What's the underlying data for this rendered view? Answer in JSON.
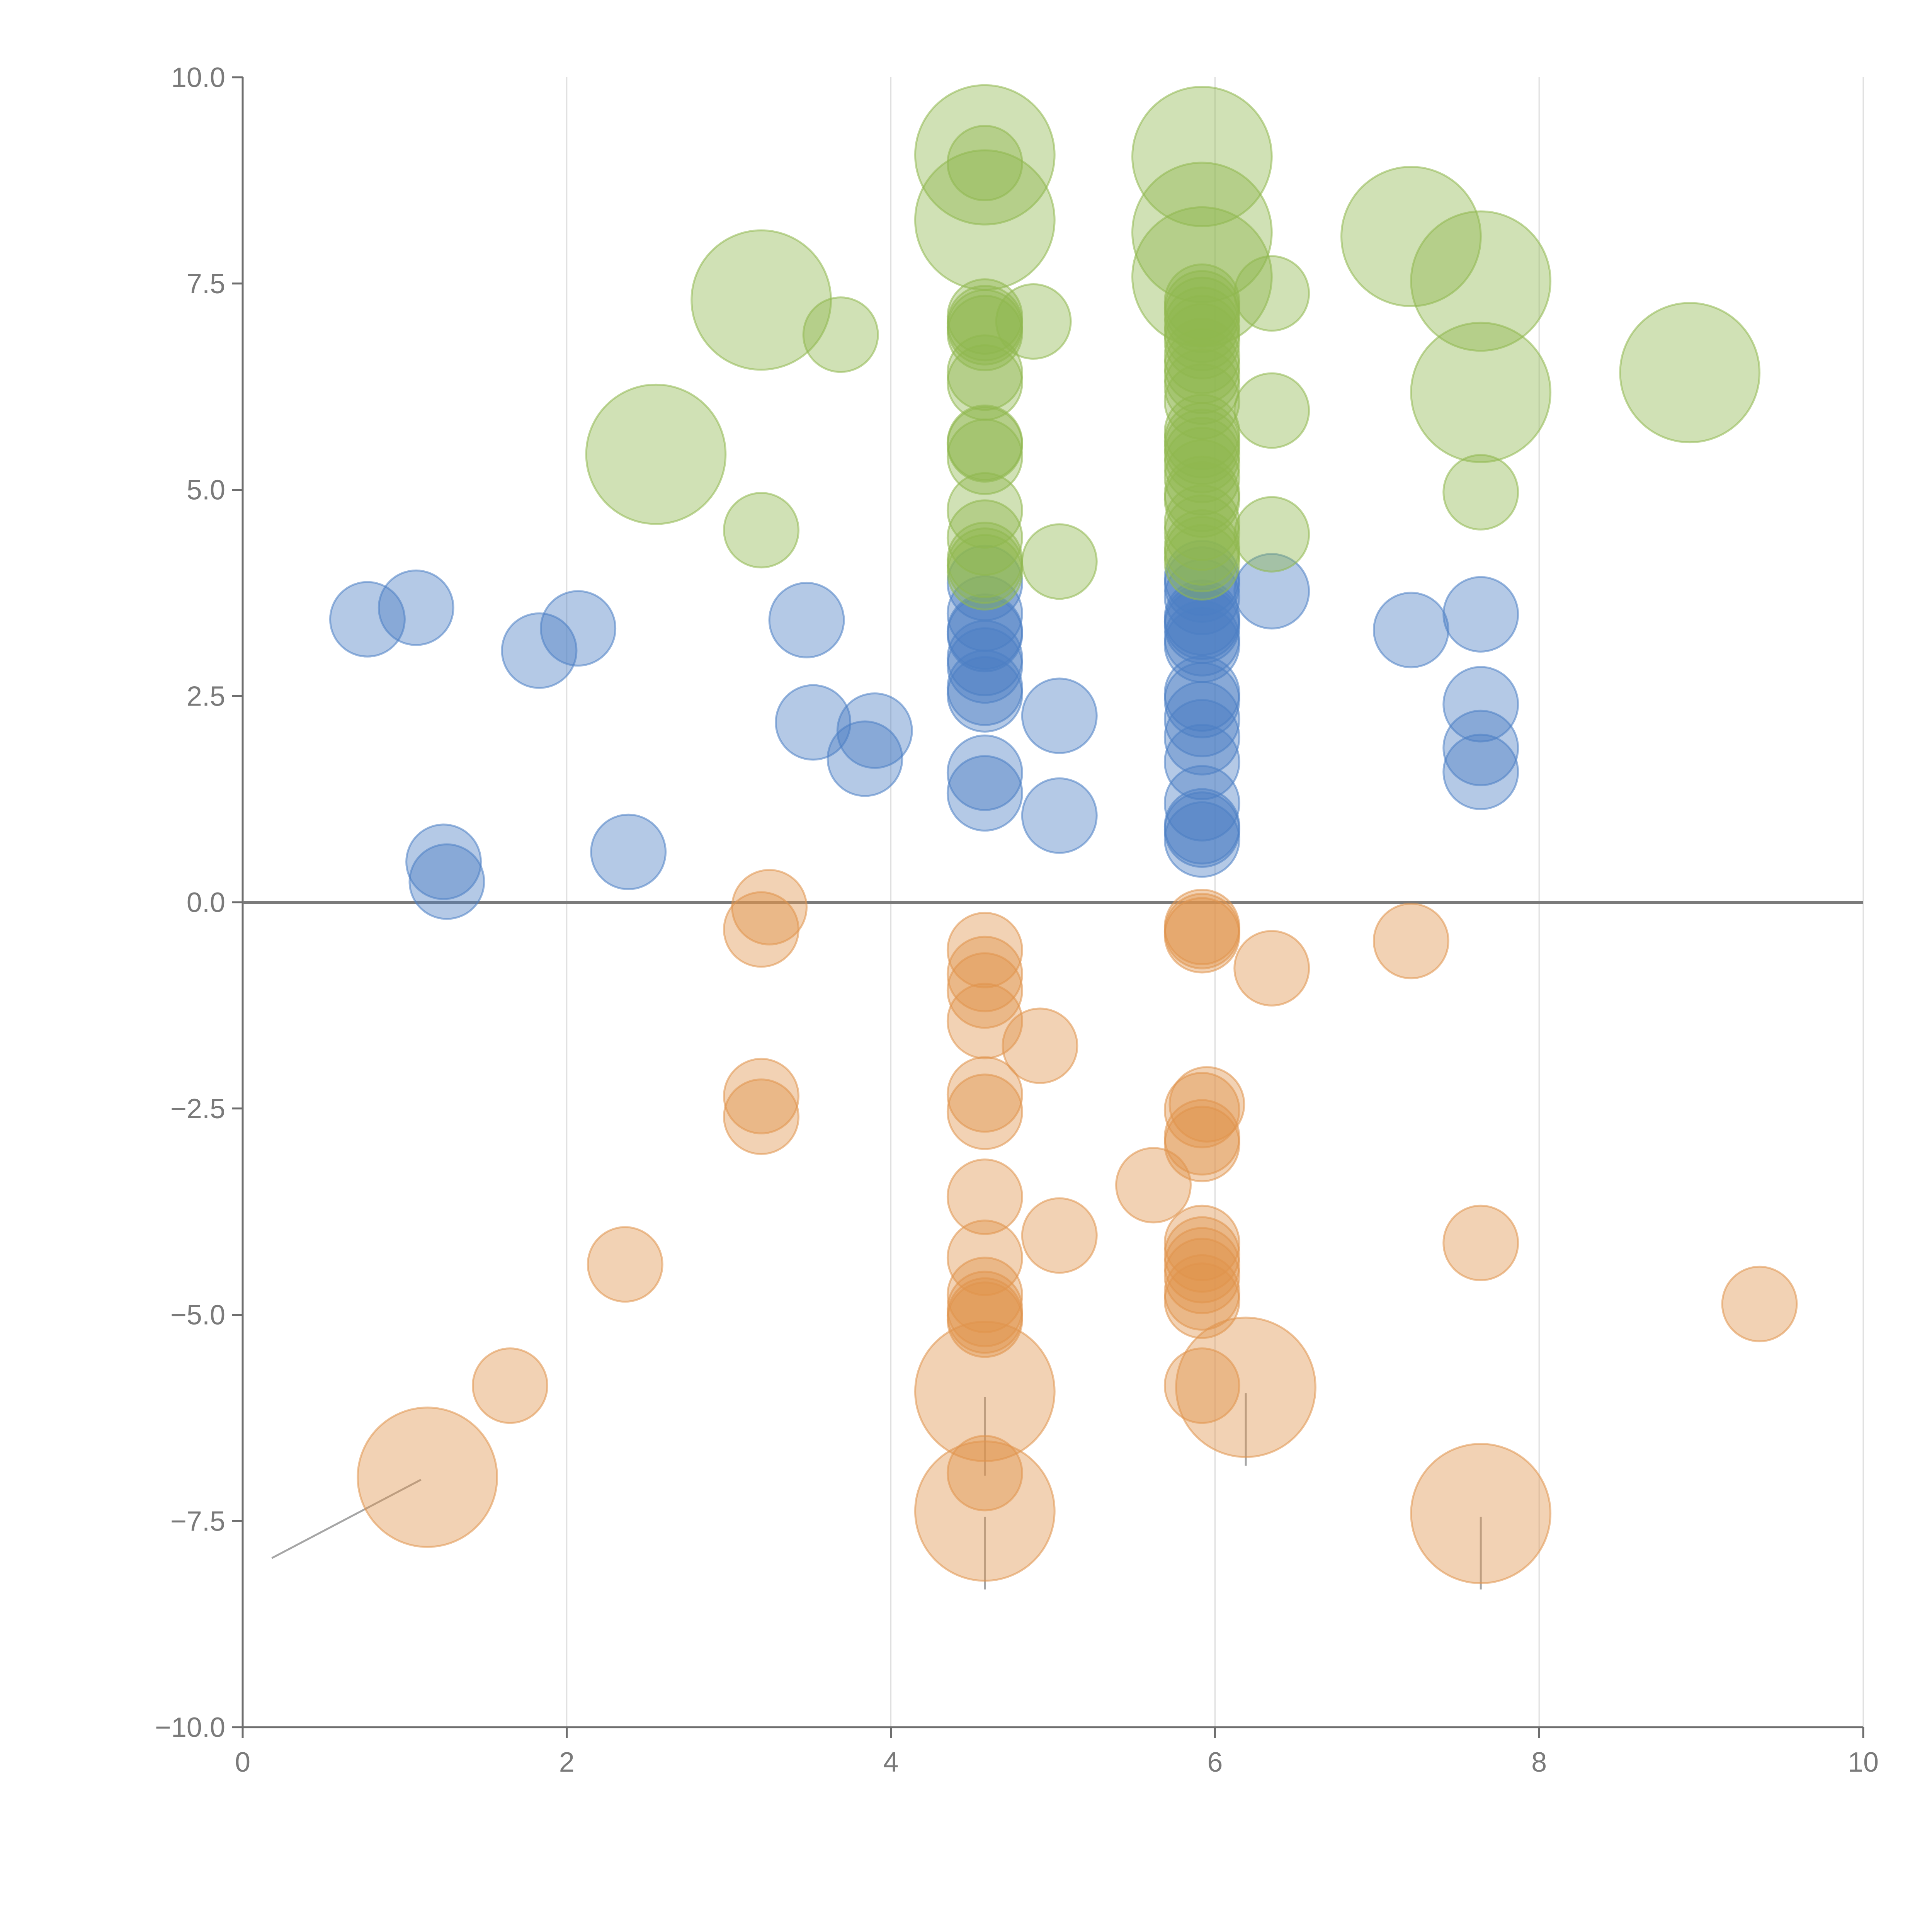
{
  "chart_data": {
    "type": "scatter",
    "title": "",
    "xlabel": "",
    "ylabel": "",
    "xlim": [
      0,
      10
    ],
    "ylim": [
      -10,
      10
    ],
    "x_ticks": [
      {
        "value": 0,
        "label": "0"
      },
      {
        "value": 2,
        "label": "2"
      },
      {
        "value": 4,
        "label": "4"
      },
      {
        "value": 6,
        "label": "6"
      },
      {
        "value": 8,
        "label": "8"
      },
      {
        "value": 10,
        "label": "10"
      }
    ],
    "y_ticks": [
      {
        "value": 10,
        "label": "10.0"
      },
      {
        "value": 7.5,
        "label": "7.5"
      },
      {
        "value": 5,
        "label": "5.0"
      },
      {
        "value": 2.5,
        "label": "2.5"
      },
      {
        "value": 0,
        "label": "0.0"
      },
      {
        "value": -2.5,
        "label": "−2.5"
      },
      {
        "value": -5,
        "label": "−5.0"
      },
      {
        "value": -7.5,
        "label": "−7.5"
      },
      {
        "value": -10,
        "label": "−10.0"
      }
    ],
    "grid": {
      "vertical": true,
      "horizontal": false
    },
    "series": [
      {
        "name": "blue",
        "color": "#4d7fc4",
        "points": [
          {
            "x": 0.77,
            "y": 3.43,
            "r": 1
          },
          {
            "x": 1.07,
            "y": 3.57,
            "r": 1
          },
          {
            "x": 1.24,
            "y": 0.49,
            "r": 1
          },
          {
            "x": 1.26,
            "y": 0.25,
            "r": 1
          },
          {
            "x": 1.83,
            "y": 3.05,
            "r": 1
          },
          {
            "x": 2.07,
            "y": 3.32,
            "r": 1
          },
          {
            "x": 2.38,
            "y": 0.61,
            "r": 1
          },
          {
            "x": 3.48,
            "y": 3.42,
            "r": 1
          },
          {
            "x": 3.52,
            "y": 2.18,
            "r": 1
          },
          {
            "x": 3.84,
            "y": 1.74,
            "r": 1
          },
          {
            "x": 3.9,
            "y": 2.08,
            "r": 1
          },
          {
            "x": 4.58,
            "y": 3.87,
            "r": 1
          },
          {
            "x": 4.58,
            "y": 3.5,
            "r": 1
          },
          {
            "x": 4.58,
            "y": 3.28,
            "r": 1
          },
          {
            "x": 4.58,
            "y": 3.25,
            "r": 1
          },
          {
            "x": 4.58,
            "y": 2.96,
            "r": 1
          },
          {
            "x": 4.58,
            "y": 2.87,
            "r": 1
          },
          {
            "x": 4.58,
            "y": 2.6,
            "r": 1
          },
          {
            "x": 4.58,
            "y": 2.52,
            "r": 1
          },
          {
            "x": 4.58,
            "y": 1.57,
            "r": 1
          },
          {
            "x": 4.58,
            "y": 1.32,
            "r": 1
          },
          {
            "x": 5.04,
            "y": 2.26,
            "r": 1
          },
          {
            "x": 5.04,
            "y": 1.05,
            "r": 1
          },
          {
            "x": 5.92,
            "y": 3.93,
            "r": 1
          },
          {
            "x": 5.92,
            "y": 3.85,
            "r": 1
          },
          {
            "x": 5.92,
            "y": 3.7,
            "r": 1
          },
          {
            "x": 5.92,
            "y": 3.45,
            "r": 1
          },
          {
            "x": 5.92,
            "y": 3.4,
            "r": 1
          },
          {
            "x": 5.92,
            "y": 3.35,
            "r": 1
          },
          {
            "x": 5.92,
            "y": 3.2,
            "r": 1
          },
          {
            "x": 5.92,
            "y": 3.12,
            "r": 1
          },
          {
            "x": 5.92,
            "y": 2.53,
            "r": 1
          },
          {
            "x": 5.92,
            "y": 2.45,
            "r": 1
          },
          {
            "x": 5.92,
            "y": 2.22,
            "r": 1
          },
          {
            "x": 5.92,
            "y": 2.0,
            "r": 1
          },
          {
            "x": 5.92,
            "y": 1.7,
            "r": 1
          },
          {
            "x": 5.92,
            "y": 1.2,
            "r": 1
          },
          {
            "x": 5.92,
            "y": 0.92,
            "r": 1
          },
          {
            "x": 5.92,
            "y": 0.88,
            "r": 1
          },
          {
            "x": 5.92,
            "y": 0.76,
            "r": 1
          },
          {
            "x": 6.35,
            "y": 3.77,
            "r": 1
          },
          {
            "x": 7.21,
            "y": 3.3,
            "r": 1
          },
          {
            "x": 7.64,
            "y": 3.49,
            "r": 1
          },
          {
            "x": 7.64,
            "y": 2.4,
            "r": 1
          },
          {
            "x": 7.64,
            "y": 1.87,
            "r": 1
          },
          {
            "x": 7.64,
            "y": 1.58,
            "r": 1
          }
        ]
      },
      {
        "name": "orange",
        "color": "#e0944d",
        "points": [
          {
            "x": 1.14,
            "y": -6.97,
            "r": 2
          },
          {
            "x": 1.65,
            "y": -5.86,
            "r": 1
          },
          {
            "x": 2.36,
            "y": -4.39,
            "r": 1
          },
          {
            "x": 3.2,
            "y": -0.33,
            "r": 1
          },
          {
            "x": 3.25,
            "y": -0.06,
            "r": 1
          },
          {
            "x": 3.2,
            "y": -2.35,
            "r": 1
          },
          {
            "x": 3.2,
            "y": -2.6,
            "r": 1
          },
          {
            "x": 4.58,
            "y": -0.58,
            "r": 1
          },
          {
            "x": 4.58,
            "y": -0.87,
            "r": 1
          },
          {
            "x": 4.58,
            "y": -1.07,
            "r": 1
          },
          {
            "x": 4.58,
            "y": -1.44,
            "r": 1
          },
          {
            "x": 4.58,
            "y": -2.33,
            "r": 1
          },
          {
            "x": 4.58,
            "y": -2.54,
            "r": 1
          },
          {
            "x": 4.58,
            "y": -3.57,
            "r": 1
          },
          {
            "x": 4.58,
            "y": -4.31,
            "r": 1
          },
          {
            "x": 4.58,
            "y": -4.76,
            "r": 1
          },
          {
            "x": 4.58,
            "y": -4.93,
            "r": 1
          },
          {
            "x": 4.58,
            "y": -5.01,
            "r": 1
          },
          {
            "x": 4.58,
            "y": -5.06,
            "r": 1
          },
          {
            "x": 4.58,
            "y": -5.93,
            "r": 2
          },
          {
            "x": 4.58,
            "y": -6.92,
            "r": 1
          },
          {
            "x": 4.58,
            "y": -7.38,
            "r": 2
          },
          {
            "x": 4.92,
            "y": -1.74,
            "r": 1
          },
          {
            "x": 5.04,
            "y": -4.04,
            "r": 1
          },
          {
            "x": 5.62,
            "y": -3.43,
            "r": 1
          },
          {
            "x": 5.92,
            "y": -0.3,
            "r": 1
          },
          {
            "x": 5.92,
            "y": -0.35,
            "r": 1
          },
          {
            "x": 5.92,
            "y": -0.4,
            "r": 1
          },
          {
            "x": 5.92,
            "y": -2.52,
            "r": 1
          },
          {
            "x": 5.95,
            "y": -2.45,
            "r": 1
          },
          {
            "x": 5.92,
            "y": -2.85,
            "r": 1
          },
          {
            "x": 5.92,
            "y": -2.93,
            "r": 1
          },
          {
            "x": 5.92,
            "y": -4.13,
            "r": 1
          },
          {
            "x": 5.92,
            "y": -4.27,
            "r": 1
          },
          {
            "x": 5.92,
            "y": -4.4,
            "r": 1
          },
          {
            "x": 5.92,
            "y": -4.53,
            "r": 1
          },
          {
            "x": 5.92,
            "y": -4.73,
            "r": 1
          },
          {
            "x": 5.92,
            "y": -4.83,
            "r": 1
          },
          {
            "x": 5.92,
            "y": -5.86,
            "r": 1
          },
          {
            "x": 6.19,
            "y": -5.88,
            "r": 2
          },
          {
            "x": 6.35,
            "y": -0.8,
            "r": 1
          },
          {
            "x": 7.21,
            "y": -0.47,
            "r": 1
          },
          {
            "x": 7.64,
            "y": -4.13,
            "r": 1
          },
          {
            "x": 7.64,
            "y": -7.41,
            "r": 2
          },
          {
            "x": 9.36,
            "y": -4.87,
            "r": 1
          }
        ]
      },
      {
        "name": "green",
        "color": "#8fb84e",
        "points": [
          {
            "x": 2.55,
            "y": 5.43,
            "r": 2
          },
          {
            "x": 3.2,
            "y": 7.3,
            "r": 2
          },
          {
            "x": 3.2,
            "y": 4.51,
            "r": 1
          },
          {
            "x": 3.69,
            "y": 6.88,
            "r": 1
          },
          {
            "x": 4.58,
            "y": 9.06,
            "r": 2
          },
          {
            "x": 4.58,
            "y": 8.96,
            "r": 1
          },
          {
            "x": 4.58,
            "y": 8.27,
            "r": 2
          },
          {
            "x": 4.58,
            "y": 7.1,
            "r": 1
          },
          {
            "x": 4.58,
            "y": 7.02,
            "r": 1
          },
          {
            "x": 4.58,
            "y": 6.97,
            "r": 1
          },
          {
            "x": 4.58,
            "y": 6.9,
            "r": 1
          },
          {
            "x": 4.58,
            "y": 6.42,
            "r": 1
          },
          {
            "x": 4.58,
            "y": 6.3,
            "r": 1
          },
          {
            "x": 4.58,
            "y": 5.57,
            "r": 1
          },
          {
            "x": 4.58,
            "y": 5.55,
            "r": 1
          },
          {
            "x": 4.58,
            "y": 5.4,
            "r": 1
          },
          {
            "x": 4.58,
            "y": 4.75,
            "r": 1
          },
          {
            "x": 4.58,
            "y": 4.42,
            "r": 1
          },
          {
            "x": 4.58,
            "y": 4.15,
            "r": 1
          },
          {
            "x": 4.58,
            "y": 4.08,
            "r": 1
          },
          {
            "x": 4.58,
            "y": 4.0,
            "r": 1
          },
          {
            "x": 4.88,
            "y": 7.04,
            "r": 1
          },
          {
            "x": 5.04,
            "y": 4.13,
            "r": 1
          },
          {
            "x": 5.92,
            "y": 9.04,
            "r": 2
          },
          {
            "x": 5.92,
            "y": 8.12,
            "r": 2
          },
          {
            "x": 5.92,
            "y": 7.58,
            "r": 2
          },
          {
            "x": 5.92,
            "y": 7.28,
            "r": 1
          },
          {
            "x": 5.92,
            "y": 7.2,
            "r": 1
          },
          {
            "x": 5.92,
            "y": 7.12,
            "r": 1
          },
          {
            "x": 5.92,
            "y": 7.0,
            "r": 1
          },
          {
            "x": 5.92,
            "y": 6.9,
            "r": 1
          },
          {
            "x": 5.92,
            "y": 6.8,
            "r": 1
          },
          {
            "x": 5.92,
            "y": 6.62,
            "r": 1
          },
          {
            "x": 5.92,
            "y": 6.5,
            "r": 1
          },
          {
            "x": 5.92,
            "y": 6.38,
            "r": 1
          },
          {
            "x": 5.92,
            "y": 6.25,
            "r": 1
          },
          {
            "x": 5.92,
            "y": 6.07,
            "r": 1
          },
          {
            "x": 5.92,
            "y": 5.7,
            "r": 1
          },
          {
            "x": 5.92,
            "y": 5.6,
            "r": 1
          },
          {
            "x": 5.92,
            "y": 5.52,
            "r": 1
          },
          {
            "x": 5.92,
            "y": 5.42,
            "r": 1
          },
          {
            "x": 5.92,
            "y": 5.3,
            "r": 1
          },
          {
            "x": 5.92,
            "y": 5.15,
            "r": 1
          },
          {
            "x": 5.92,
            "y": 4.95,
            "r": 1
          },
          {
            "x": 5.92,
            "y": 4.88,
            "r": 1
          },
          {
            "x": 5.92,
            "y": 4.6,
            "r": 1
          },
          {
            "x": 5.92,
            "y": 4.48,
            "r": 1
          },
          {
            "x": 5.92,
            "y": 4.3,
            "r": 1
          },
          {
            "x": 5.92,
            "y": 4.22,
            "r": 1
          },
          {
            "x": 5.92,
            "y": 4.12,
            "r": 1
          },
          {
            "x": 6.35,
            "y": 7.38,
            "r": 1
          },
          {
            "x": 6.35,
            "y": 5.96,
            "r": 1
          },
          {
            "x": 6.35,
            "y": 4.46,
            "r": 1
          },
          {
            "x": 7.21,
            "y": 8.07,
            "r": 2
          },
          {
            "x": 7.64,
            "y": 7.53,
            "r": 2
          },
          {
            "x": 7.64,
            "y": 6.18,
            "r": 2
          },
          {
            "x": 7.64,
            "y": 4.97,
            "r": 1
          },
          {
            "x": 8.93,
            "y": 6.42,
            "r": 2
          }
        ]
      }
    ],
    "annotation_leaders": [
      {
        "from": [
          1.1,
          -7.0
        ],
        "to": [
          0.18,
          -7.95
        ]
      },
      {
        "from": [
          4.58,
          -6.0
        ],
        "to": [
          4.58,
          -6.95
        ]
      },
      {
        "from": [
          4.58,
          -7.45
        ],
        "to": [
          4.58,
          -8.33
        ]
      },
      {
        "from": [
          6.19,
          -5.95
        ],
        "to": [
          6.19,
          -6.83
        ]
      },
      {
        "from": [
          7.64,
          -7.45
        ],
        "to": [
          7.64,
          -8.33
        ]
      }
    ],
    "bubble_radius_units": {
      "1": 0.23,
      "2": 0.43
    }
  }
}
